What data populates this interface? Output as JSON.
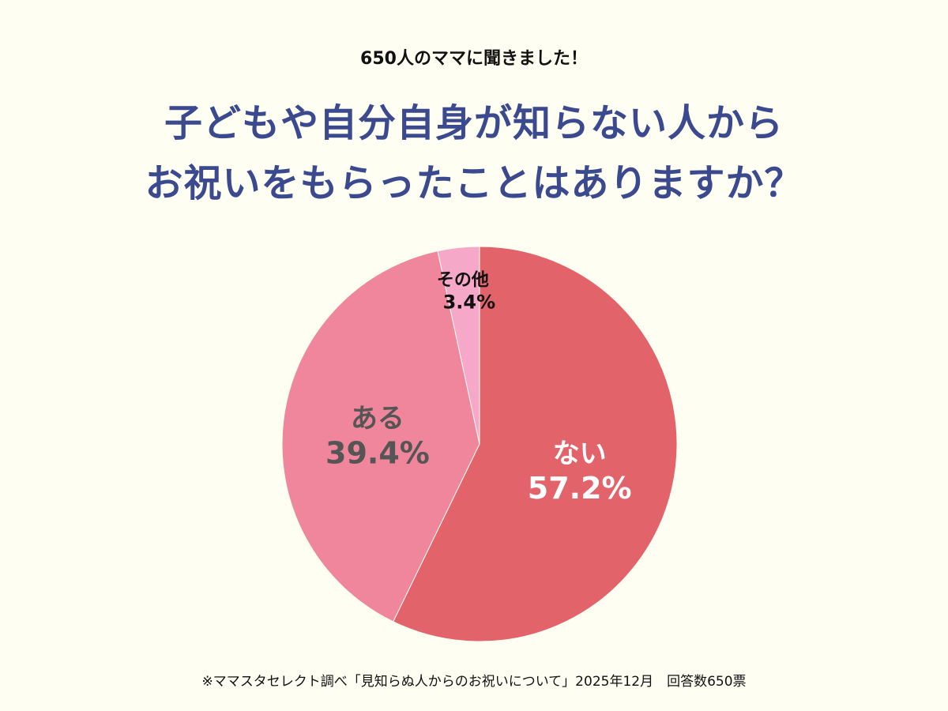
{
  "header": {
    "subtitle": "650人のママに聞きました！",
    "title_line1": "子どもや自分自身が知らない人から",
    "title_line2": "お祝いをもらったことはありますか？"
  },
  "chart_data": {
    "type": "pie",
    "start": "top",
    "direction": "clockwise",
    "slices": [
      {
        "label": "ない",
        "value": 57.2,
        "value_label": "57.2%",
        "color": "#e2636a",
        "text_color": "#ffffff"
      },
      {
        "label": "ある",
        "value": 39.4,
        "value_label": "39.4%",
        "color": "#f0869c",
        "text_color": "#555555"
      },
      {
        "label": "その他",
        "value": 3.4,
        "value_label": "3.4%",
        "color": "#f5a8c8",
        "text_color": "#111111"
      }
    ]
  },
  "footer": {
    "note": "※ママスタセレクト調べ「見知らぬ人からのお祝いについて」2025年12月　回答数650票"
  }
}
